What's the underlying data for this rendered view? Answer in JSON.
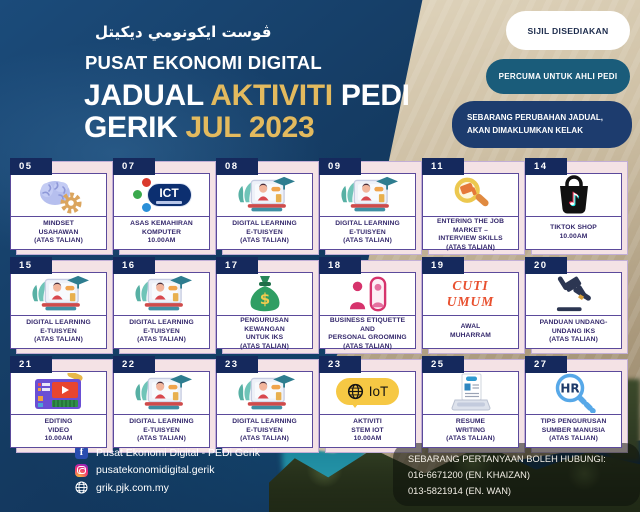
{
  "header": {
    "jawi": "ڤوست ايكونومي ديكيتل",
    "org": "PUSAT EKONOMI DIGITAL",
    "title": {
      "jadual": "JADUAL ",
      "aktiviti": "AKTIVITI",
      "pedi": " PEDI",
      "gerik": "GERIK ",
      "jul": "JUL 2023"
    }
  },
  "notices": [
    {
      "label": "SIJIL DISEDIAKAN"
    },
    {
      "label": "PERCUMA UNTUK AHLI PEDI"
    },
    {
      "label": "SEBARANG PERUBAHAN JADUAL, AKAN DIMAKLUMKAN KELAK"
    }
  ],
  "icons": {
    "ict_label": "ICT",
    "iot_label": "IoT",
    "hr_label": "HR",
    "music_note_glyph": "♪",
    "dollar_glyph": "$",
    "facebook_glyph": "f"
  },
  "events": [
    {
      "day": "05",
      "icon": "brain-gear-icon",
      "title_lines": [
        "MINDSET",
        "USAHAWAN",
        "(ATAS TALIAN)"
      ]
    },
    {
      "day": "07",
      "icon": "ict-logo-icon",
      "title_lines": [
        "ASAS KEMAHIRAN",
        "KOMPUTER",
        "10.00AM"
      ]
    },
    {
      "day": "08",
      "icon": "elearning-illustration-icon",
      "title_lines": [
        "DIGITAL LEARNING",
        "E-TUISYEN",
        "(ATAS TALIAN)"
      ]
    },
    {
      "day": "09",
      "icon": "elearning-illustration-icon",
      "title_lines": [
        "DIGITAL LEARNING",
        "E-TUISYEN",
        "(ATAS TALIAN)"
      ]
    },
    {
      "day": "11",
      "icon": "job-search-magnifier-icon",
      "title_lines": [
        "ENTERING THE JOB",
        "MARKET –",
        "INTERVIEW SKILLS",
        "(ATAS TALIAN)"
      ]
    },
    {
      "day": "14",
      "icon": "tiktok-shop-icon",
      "title_lines": [
        "TIKTOK SHOP",
        "10.00AM"
      ]
    },
    {
      "day": "15",
      "icon": "elearning-illustration-icon",
      "title_lines": [
        "DIGITAL LEARNING",
        "E-TUISYEN",
        "(ATAS TALIAN)"
      ]
    },
    {
      "day": "16",
      "icon": "elearning-illustration-icon",
      "title_lines": [
        "DIGITAL LEARNING",
        "E-TUISYEN",
        "(ATAS TALIAN)"
      ]
    },
    {
      "day": "17",
      "icon": "money-bag-icon",
      "title_lines": [
        "PENGURUSAN KEWANGAN",
        "UNTUK IKS",
        "(ATAS TALIAN)"
      ]
    },
    {
      "day": "18",
      "icon": "grooming-mirror-icon",
      "title_lines": [
        "BUSINESS ETIQUETTE AND",
        "PERSONAL GROOMING",
        "(ATAS TALIAN)"
      ]
    },
    {
      "day": "19",
      "icon": "holiday-label",
      "holiday_lines": [
        "CUTI",
        "UMUM"
      ],
      "title_lines": [
        "AWAL",
        "MUHARRAM"
      ]
    },
    {
      "day": "20",
      "icon": "gavel-icon",
      "title_lines": [
        "PANDUAN UNDANG-",
        "UNDANG IKS",
        "(ATAS TALIAN)"
      ]
    },
    {
      "day": "21",
      "icon": "video-editing-icon",
      "title_lines": [
        "EDITING",
        "VIDEO",
        "10.00AM"
      ]
    },
    {
      "day": "22",
      "icon": "elearning-illustration-icon",
      "title_lines": [
        "DIGITAL LEARNING",
        "E-TUISYEN",
        "(ATAS TALIAN)"
      ]
    },
    {
      "day": "23",
      "icon": "elearning-illustration-icon",
      "title_lines": [
        "DIGITAL LEARNING",
        "E-TUISYEN",
        "(ATAS TALIAN)"
      ]
    },
    {
      "day": "23",
      "icon": "iot-bubble-icon",
      "title_lines": [
        "AKTIVITI",
        "STEM IOT",
        "10.00AM"
      ]
    },
    {
      "day": "25",
      "icon": "resume-laptop-icon",
      "title_lines": [
        "RESUME",
        "WRITING",
        "(ATAS TALIAN)"
      ]
    },
    {
      "day": "27",
      "icon": "hr-magnifier-icon",
      "title_lines": [
        "TIPS PENGURUSAN",
        "SUMBER MANUSIA",
        "(ATAS TALIAN)"
      ]
    }
  ],
  "footer": {
    "socials": [
      {
        "icon": "facebook-icon",
        "label": "Pusat Ekonomi Digital - PEDi Gerik"
      },
      {
        "icon": "instagram-icon",
        "label": "pusatekonomidigital.gerik"
      },
      {
        "icon": "globe-icon",
        "label": "grik.pjk.com.my"
      }
    ],
    "contact": {
      "heading": "SEBARANG PERTANYAAN BOLEH HUBUNGI:",
      "phones": [
        "016-6671200 (EN. KHAIZAN)",
        "013-5821914 (EN. WAN)"
      ]
    }
  },
  "colors": {
    "gold": "#e3ba5e",
    "navy_tab": "#15295d",
    "card_border": "#5b4a9b",
    "caption_text": "#33276b",
    "teal_pill": "#1a5c7a",
    "navy_pill": "#1d3c6e",
    "shadow_pink": "#f4e2e5",
    "holiday_red": "#e8502f"
  }
}
